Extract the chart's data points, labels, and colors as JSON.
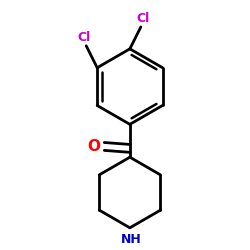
{
  "background_color": "#ffffff",
  "bond_color": "#000000",
  "cl_color": "#cc00cc",
  "o_color": "#ff0000",
  "nh_color": "#0000cc",
  "line_width": 2.0,
  "dbo": 0.018,
  "figsize": [
    2.5,
    2.5
  ],
  "dpi": 100,
  "cl1_label": "Cl",
  "cl2_label": "Cl",
  "o_label": "O",
  "nh_label": "NH"
}
